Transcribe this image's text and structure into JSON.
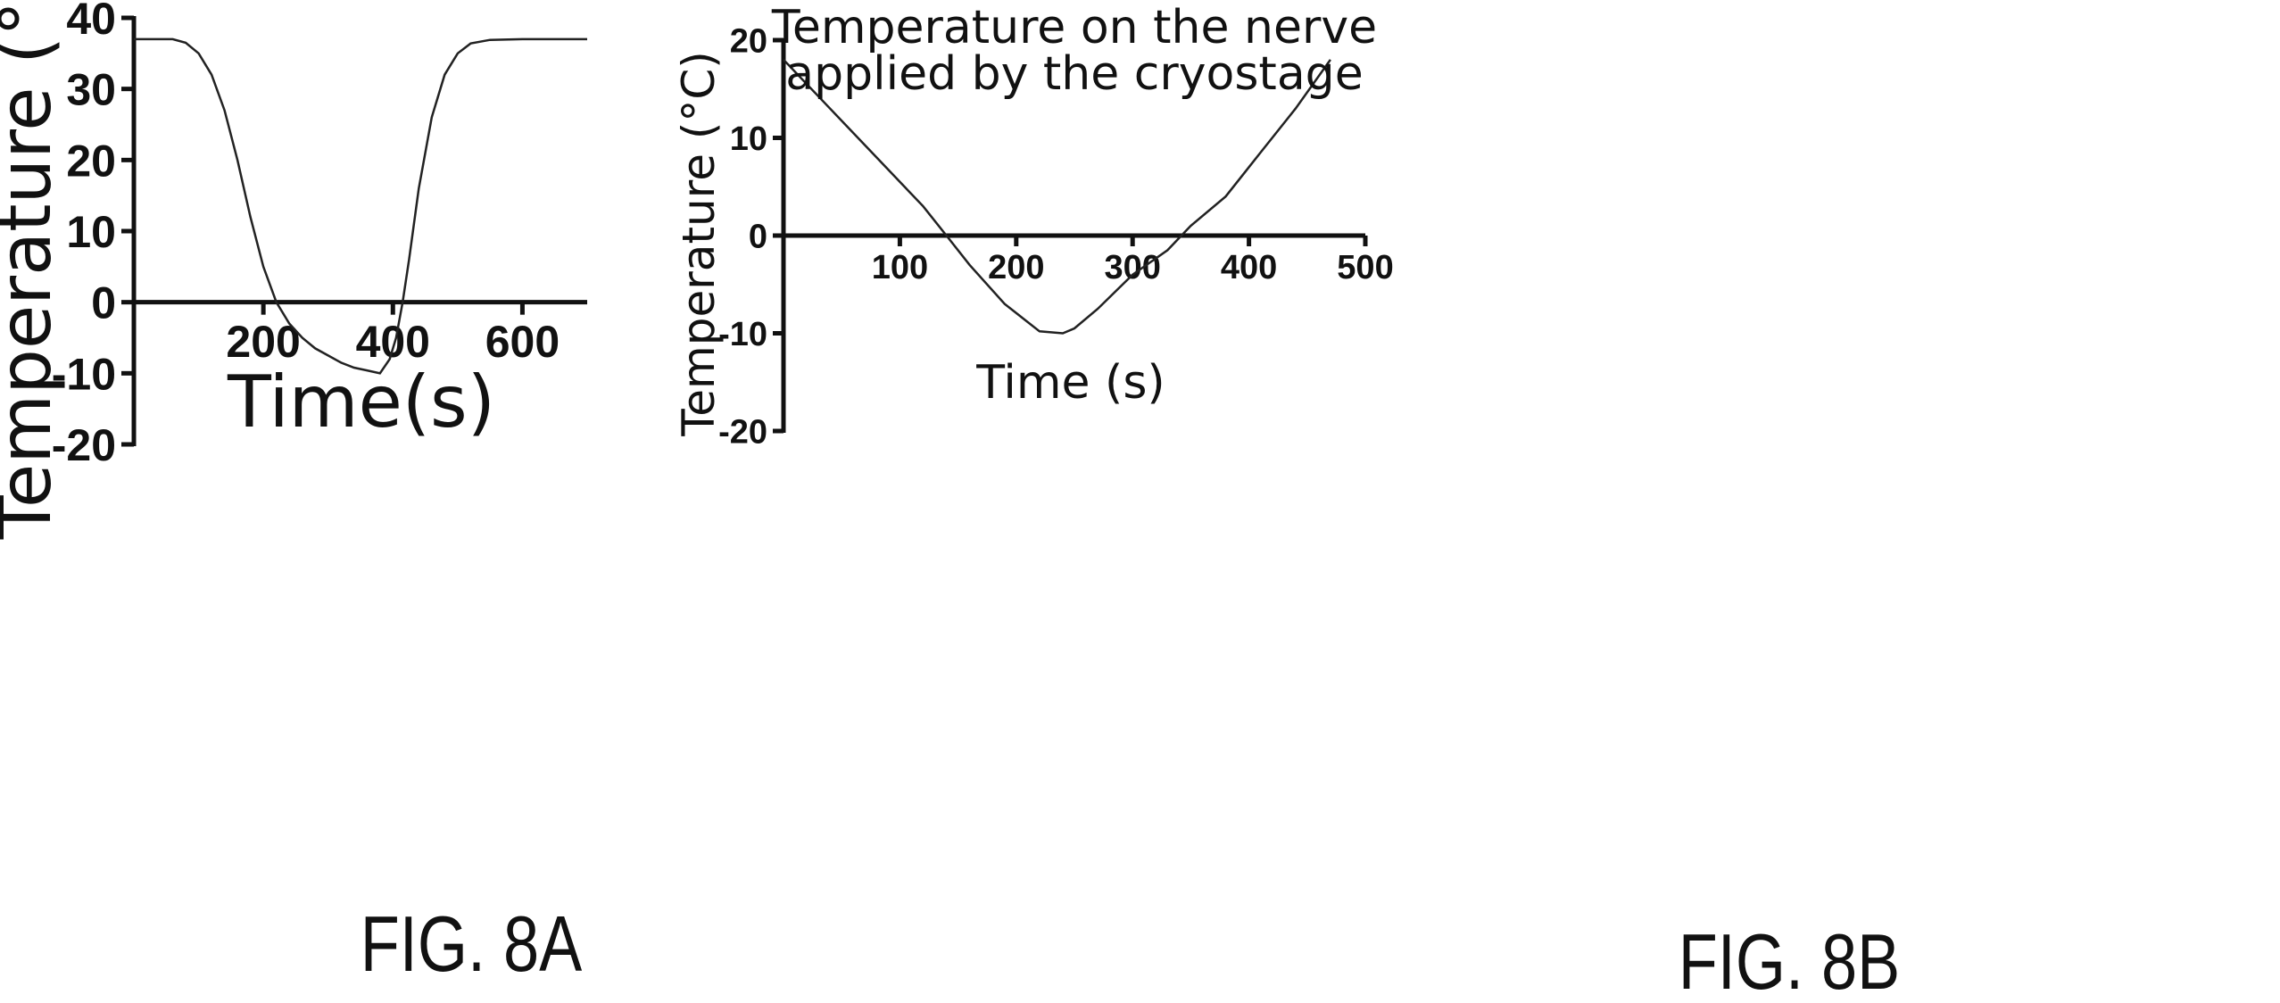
{
  "figures": [
    {
      "caption": "FIG. 8A",
      "chart_data": {
        "type": "line",
        "title": "",
        "xlabel": "Time(s)",
        "ylabel": "Temperature (°C)",
        "xlim": [
          0,
          700
        ],
        "ylim": [
          -20,
          40
        ],
        "xticks": [
          200,
          400,
          600
        ],
        "yticks": [
          -20,
          -10,
          0,
          10,
          20,
          30,
          40
        ],
        "grid": false,
        "series": [
          {
            "x": [
              0,
              60,
              80,
              100,
              120,
              140,
              160,
              180,
              200,
              220,
              240,
              260,
              280,
              300,
              320,
              340,
              360,
              380,
              395,
              405,
              415,
              425,
              440,
              460,
              480,
              500,
              520,
              550,
              600,
              700
            ],
            "y": [
              37,
              37,
              36.5,
              35,
              32,
              27,
              20,
              12,
              5,
              0,
              -3,
              -5,
              -6.5,
              -7.5,
              -8.5,
              -9.2,
              -9.6,
              -10,
              -8,
              -5,
              0,
              6,
              16,
              26,
              32,
              35,
              36.4,
              36.9,
              37,
              37
            ]
          }
        ]
      }
    },
    {
      "caption": "FIG. 8B",
      "chart_data": {
        "type": "line",
        "title": "Temperature on the nerve\napplied by the cryostage",
        "xlabel": "Time (s)",
        "ylabel": "Temperature (°C)",
        "xlim": [
          0,
          500
        ],
        "ylim": [
          -20,
          20
        ],
        "xticks": [
          100,
          200,
          300,
          400,
          500
        ],
        "yticks": [
          -20,
          -10,
          0,
          10,
          20
        ],
        "grid": false,
        "series": [
          {
            "x": [
              0,
              40,
              80,
              120,
              140,
              160,
              190,
              220,
              240,
              250,
              270,
              300,
              330,
              350,
              380,
              410,
              440,
              470
            ],
            "y": [
              18,
              13,
              8,
              3,
              0,
              -3,
              -7,
              -9.8,
              -10,
              -9.5,
              -7.5,
              -4,
              -1.5,
              1,
              4,
              8.5,
              13,
              18
            ]
          }
        ]
      }
    }
  ]
}
